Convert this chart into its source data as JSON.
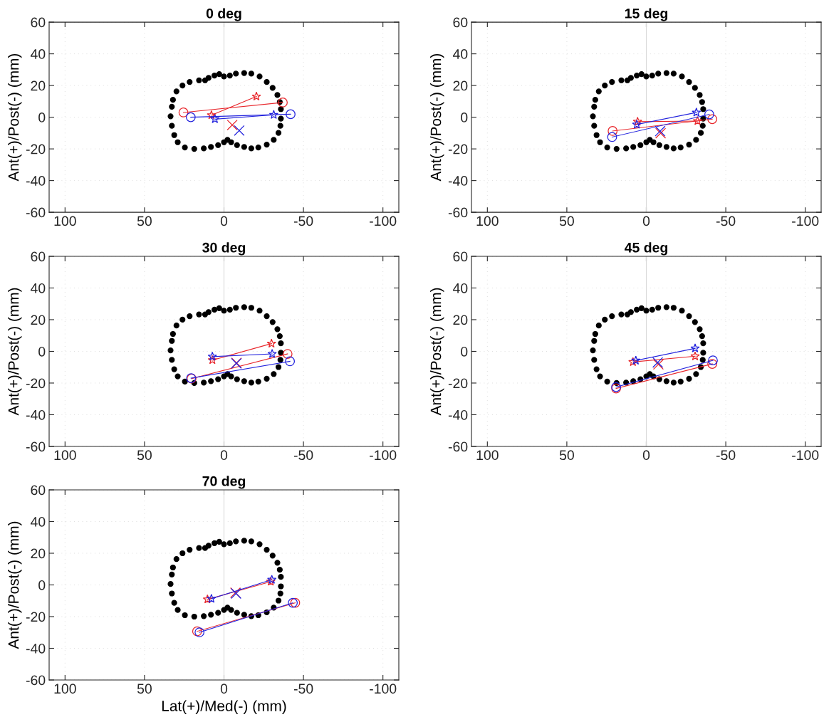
{
  "chart_data": [
    {
      "type": "line",
      "title": "0 deg",
      "ylabel": "Ant(+)/Post(-) (mm)",
      "xlim": [
        110,
        -110
      ],
      "ylim": [
        -60,
        60
      ],
      "xticks": [
        100,
        50,
        0,
        -50,
        -100
      ],
      "yticks": [
        -60,
        -40,
        -20,
        0,
        20,
        40,
        60
      ],
      "grid": true,
      "ref_lines": [
        {
          "axis": "x",
          "value": 0,
          "color": "#d9d9d9"
        }
      ],
      "series": [
        {
          "type": "scatter",
          "marker": "circle",
          "color": "#000000",
          "x": [
            3,
            0,
            -3.7,
            -7.5,
            -12.7,
            -17.2,
            -22.4,
            -26.9,
            -30.6,
            -33.6,
            -35.1,
            -35.8,
            -35.8,
            -35.5,
            -34.3,
            -31.3,
            -26.9,
            -21.6,
            -17.2,
            -12.7,
            -8.2,
            -4.5,
            -2.2,
            0,
            3.7,
            8.2,
            12.7,
            18.7,
            24.6,
            29.1,
            31.3,
            32.8,
            33.6,
            32.8,
            32.1,
            29.9,
            26.1,
            21.6,
            15.7,
            11.9,
            9.7,
            6
          ],
          "values": [
            27.2,
            25.7,
            26.3,
            27.5,
            27.9,
            27.5,
            25.7,
            22.2,
            18.5,
            14,
            9.6,
            5.1,
            -0.9,
            -5.4,
            -9.9,
            -14.3,
            -17.3,
            -19.1,
            -19.7,
            -18.8,
            -17.6,
            -15.8,
            -14.3,
            -15.8,
            -17.6,
            -18.8,
            -19.7,
            -20,
            -19.1,
            -15.8,
            -11.3,
            -5.4,
            0.6,
            6.6,
            11,
            16.3,
            20,
            22.2,
            23.3,
            23.3,
            24.8,
            26.3
          ]
        },
        {
          "marker": "circle",
          "color": "#e8262b",
          "x": [
            25.5,
            -37
          ],
          "values": [
            3,
            9.3
          ]
        },
        {
          "marker": "star",
          "color": "#e8262b",
          "x": [
            7.9,
            -20.4
          ],
          "values": [
            1.3,
            13.1
          ]
        },
        {
          "type": "scatter",
          "marker": "cross",
          "color": "#e8262b",
          "x": [
            -5.2
          ],
          "values": [
            -4.9
          ]
        },
        {
          "marker": "circle",
          "color": "#2222dd",
          "x": [
            20.9,
            -41.9
          ],
          "values": [
            0,
            1.9
          ]
        },
        {
          "marker": "star",
          "color": "#2222dd",
          "x": [
            5.7,
            -31.3
          ],
          "values": [
            -1.2,
            1.5
          ]
        },
        {
          "type": "scatter",
          "marker": "cross",
          "color": "#2222dd",
          "x": [
            -9.6
          ],
          "values": [
            -8.4
          ]
        }
      ]
    },
    {
      "type": "line",
      "title": "15 deg",
      "ylabel": "Ant(+)/Post(-) (mm)",
      "xlim": [
        110,
        -110
      ],
      "ylim": [
        -60,
        60
      ],
      "xticks": [
        100,
        50,
        0,
        -50,
        -100
      ],
      "yticks": [
        -60,
        -40,
        -20,
        0,
        20,
        40,
        60
      ],
      "grid": true,
      "ref_lines": [
        {
          "axis": "x",
          "value": 0,
          "color": "#d9d9d9"
        }
      ],
      "series": [
        {
          "type": "scatter",
          "marker": "circle",
          "color": "#000000",
          "x": [
            3,
            0,
            -3.7,
            -7.5,
            -12.7,
            -17.2,
            -22.4,
            -26.9,
            -30.6,
            -33.6,
            -35.1,
            -35.8,
            -35.8,
            -35.5,
            -34.3,
            -31.3,
            -26.9,
            -21.6,
            -17.2,
            -12.7,
            -8.2,
            -4.5,
            -2.2,
            0,
            3.7,
            8.2,
            12.7,
            18.7,
            24.6,
            29.1,
            31.3,
            32.8,
            33.6,
            32.8,
            32.1,
            29.9,
            26.1,
            21.6,
            15.7,
            11.9,
            9.7,
            6
          ],
          "values": [
            27.2,
            25.7,
            26.3,
            27.5,
            27.9,
            27.5,
            25.7,
            22.2,
            18.5,
            14,
            9.6,
            5.1,
            -0.9,
            -5.4,
            -9.9,
            -14.3,
            -17.3,
            -19.1,
            -19.7,
            -18.8,
            -17.6,
            -15.8,
            -14.3,
            -15.8,
            -17.6,
            -18.8,
            -19.7,
            -20,
            -19.1,
            -15.8,
            -11.3,
            -5.4,
            0.6,
            6.6,
            11,
            16.3,
            20,
            22.2,
            23.3,
            23.3,
            24.8,
            26.3
          ]
        },
        {
          "marker": "circle",
          "color": "#e8262b",
          "x": [
            21.2,
            -41.5
          ],
          "values": [
            -8.7,
            -1.2
          ]
        },
        {
          "marker": "star",
          "color": "#e8262b",
          "x": [
            5.5,
            -32.2
          ],
          "values": [
            -2.8,
            -2.4
          ]
        },
        {
          "type": "scatter",
          "marker": "cross",
          "color": "#e8262b",
          "x": [
            -9
          ],
          "values": [
            -10.1
          ]
        },
        {
          "marker": "circle",
          "color": "#2222dd",
          "x": [
            21.5,
            -39.6
          ],
          "values": [
            -12.5,
            1.8
          ]
        },
        {
          "marker": "star",
          "color": "#2222dd",
          "x": [
            6,
            -31.5
          ],
          "values": [
            -4.6,
            3
          ]
        },
        {
          "type": "scatter",
          "marker": "cross",
          "color": "#2222dd",
          "x": [
            -8.7
          ],
          "values": [
            -8.8
          ]
        }
      ]
    },
    {
      "type": "line",
      "title": "30 deg",
      "ylabel": "Ant(+)/Post(-) (mm)",
      "xlim": [
        110,
        -110
      ],
      "ylim": [
        -60,
        60
      ],
      "xticks": [
        100,
        50,
        0,
        -50,
        -100
      ],
      "yticks": [
        -60,
        -40,
        -20,
        0,
        20,
        40,
        60
      ],
      "grid": true,
      "ref_lines": [
        {
          "axis": "x",
          "value": 0,
          "color": "#d9d9d9"
        }
      ],
      "series": [
        {
          "type": "scatter",
          "marker": "circle",
          "color": "#000000",
          "x": [
            3,
            0,
            -3.7,
            -7.5,
            -12.7,
            -17.2,
            -22.4,
            -26.9,
            -30.6,
            -33.6,
            -35.1,
            -35.8,
            -35.8,
            -35.5,
            -34.3,
            -31.3,
            -26.9,
            -21.6,
            -17.2,
            -12.7,
            -8.2,
            -4.5,
            -2.2,
            0,
            3.7,
            8.2,
            12.7,
            18.7,
            24.6,
            29.1,
            31.3,
            32.8,
            33.6,
            32.8,
            32.1,
            29.9,
            26.1,
            21.6,
            15.7,
            11.9,
            9.7,
            6
          ],
          "values": [
            27.2,
            25.7,
            26.3,
            27.5,
            27.9,
            27.5,
            25.7,
            22.2,
            18.5,
            14,
            9.6,
            5.1,
            -0.9,
            -5.4,
            -9.9,
            -14.3,
            -17.3,
            -19.1,
            -19.7,
            -18.8,
            -17.6,
            -15.8,
            -14.3,
            -15.8,
            -17.6,
            -18.8,
            -19.7,
            -20,
            -19.1,
            -15.8,
            -11.3,
            -5.4,
            0.6,
            6.6,
            11,
            16.3,
            20,
            22.2,
            23.3,
            23.3,
            24.8,
            26.3
          ]
        },
        {
          "marker": "circle",
          "color": "#e8262b",
          "x": [
            20.4,
            -40
          ],
          "values": [
            -17.2,
            -1.6
          ]
        },
        {
          "marker": "star",
          "color": "#e8262b",
          "x": [
            7.3,
            -29.9
          ],
          "values": [
            -5.5,
            4.9
          ]
        },
        {
          "type": "scatter",
          "marker": "cross",
          "color": "#e8262b",
          "x": [
            -7.9
          ],
          "values": [
            -7.3
          ]
        },
        {
          "marker": "circle",
          "color": "#2222dd",
          "x": [
            20.7,
            -41.5
          ],
          "values": [
            -16.9,
            -6.3
          ]
        },
        {
          "marker": "star",
          "color": "#2222dd",
          "x": [
            7.3,
            -30.3
          ],
          "values": [
            -3.3,
            -1.6
          ]
        },
        {
          "type": "scatter",
          "marker": "cross",
          "color": "#2222dd",
          "x": [
            -7.8
          ],
          "values": [
            -7.6
          ]
        }
      ]
    },
    {
      "type": "line",
      "title": "45 deg",
      "ylabel": "Ant(+)/Post(-) (mm)",
      "xlim": [
        110,
        -110
      ],
      "ylim": [
        -60,
        60
      ],
      "xticks": [
        100,
        50,
        0,
        -50,
        -100
      ],
      "yticks": [
        -60,
        -40,
        -20,
        0,
        20,
        40,
        60
      ],
      "grid": true,
      "ref_lines": [
        {
          "axis": "x",
          "value": 0,
          "color": "#d9d9d9"
        }
      ],
      "series": [
        {
          "type": "scatter",
          "marker": "circle",
          "color": "#000000",
          "x": [
            3,
            0,
            -3.7,
            -7.5,
            -12.7,
            -17.2,
            -22.4,
            -26.9,
            -30.6,
            -33.6,
            -35.1,
            -35.8,
            -35.8,
            -35.5,
            -34.3,
            -31.3,
            -26.9,
            -21.6,
            -17.2,
            -12.7,
            -8.2,
            -4.5,
            -2.2,
            0,
            3.7,
            8.2,
            12.7,
            18.7,
            24.6,
            29.1,
            31.3,
            32.8,
            33.6,
            32.8,
            32.1,
            29.9,
            26.1,
            21.6,
            15.7,
            11.9,
            9.7,
            6
          ],
          "values": [
            27.2,
            25.7,
            26.3,
            27.5,
            27.9,
            27.5,
            25.7,
            22.2,
            18.5,
            14,
            9.6,
            5.1,
            -0.9,
            -5.4,
            -9.9,
            -14.3,
            -17.3,
            -19.1,
            -19.7,
            -18.8,
            -17.6,
            -15.8,
            -14.3,
            -15.8,
            -17.6,
            -18.8,
            -19.7,
            -20,
            -19.1,
            -15.8,
            -11.3,
            -5.4,
            0.6,
            6.6,
            11,
            16.3,
            20,
            22.2,
            23.3,
            23.3,
            24.8,
            26.3
          ]
        },
        {
          "marker": "circle",
          "color": "#e8262b",
          "x": [
            19,
            -41.5
          ],
          "values": [
            -23.4,
            -7.9
          ]
        },
        {
          "marker": "star",
          "color": "#e8262b",
          "x": [
            8.4,
            -30.7
          ],
          "values": [
            -6.7,
            -3.1
          ]
        },
        {
          "type": "scatter",
          "marker": "cross",
          "color": "#e8262b",
          "x": [
            -7.6
          ],
          "values": [
            -8.2
          ]
        },
        {
          "marker": "circle",
          "color": "#2222dd",
          "x": [
            19,
            -41.9
          ],
          "values": [
            -22.5,
            -5.7
          ]
        },
        {
          "marker": "star",
          "color": "#2222dd",
          "x": [
            6.6,
            -30.7
          ],
          "values": [
            -5.8,
            1.9
          ]
        },
        {
          "type": "scatter",
          "marker": "cross",
          "color": "#2222dd",
          "x": [
            -7.2
          ],
          "values": [
            -7
          ]
        }
      ]
    },
    {
      "type": "line",
      "title": "70 deg",
      "xlabel": "Lat(+)/Med(-) (mm)",
      "ylabel": "Ant(+)/Post(-) (mm)",
      "xlim": [
        110,
        -110
      ],
      "ylim": [
        -60,
        60
      ],
      "xticks": [
        100,
        50,
        0,
        -50,
        -100
      ],
      "yticks": [
        -60,
        -40,
        -20,
        0,
        20,
        40,
        60
      ],
      "grid": true,
      "ref_lines": [
        {
          "axis": "x",
          "value": 0,
          "color": "#d9d9d9"
        }
      ],
      "series": [
        {
          "type": "scatter",
          "marker": "circle",
          "color": "#000000",
          "x": [
            3,
            0,
            -3.7,
            -7.5,
            -12.7,
            -17.2,
            -22.4,
            -26.9,
            -30.6,
            -33.6,
            -35.1,
            -35.8,
            -35.8,
            -35.5,
            -34.3,
            -31.3,
            -26.9,
            -21.6,
            -17.2,
            -12.7,
            -8.2,
            -4.5,
            -2.2,
            0,
            3.7,
            8.2,
            12.7,
            18.7,
            24.6,
            29.1,
            31.3,
            32.8,
            33.6,
            32.8,
            32.1,
            29.9,
            26.1,
            21.6,
            15.7,
            11.9,
            9.7,
            6
          ],
          "values": [
            27.2,
            25.7,
            26.3,
            27.5,
            27.9,
            27.5,
            25.7,
            22.2,
            18.5,
            14,
            9.6,
            5.1,
            -0.9,
            -5.4,
            -9.9,
            -14.3,
            -17.3,
            -19.1,
            -19.7,
            -18.8,
            -17.6,
            -15.8,
            -14.3,
            -15.8,
            -17.6,
            -18.8,
            -19.7,
            -20,
            -19.1,
            -15.8,
            -11.3,
            -5.4,
            0.6,
            6.6,
            11,
            16.3,
            20,
            22.2,
            23.3,
            23.3,
            24.8,
            26.3
          ]
        },
        {
          "marker": "circle",
          "color": "#e8262b",
          "x": [
            16.9,
            -44.8
          ],
          "values": [
            -29.3,
            -11.3
          ]
        },
        {
          "marker": "star",
          "color": "#e8262b",
          "x": [
            10.4,
            -29.4
          ],
          "values": [
            -9.1,
            2.1
          ]
        },
        {
          "type": "scatter",
          "marker": "cross",
          "color": "#e8262b",
          "x": [
            -7.2
          ],
          "values": [
            -4.9
          ]
        },
        {
          "marker": "circle",
          "color": "#2222dd",
          "x": [
            15.4,
            -43.3
          ],
          "values": [
            -29.9,
            -11.3
          ]
        },
        {
          "marker": "star",
          "color": "#2222dd",
          "x": [
            7.9,
            -30.1
          ],
          "values": [
            -8.7,
            3.3
          ]
        },
        {
          "type": "scatter",
          "marker": "cross",
          "color": "#2222dd",
          "x": [
            -7.6
          ],
          "values": [
            -5.4
          ]
        }
      ]
    }
  ]
}
